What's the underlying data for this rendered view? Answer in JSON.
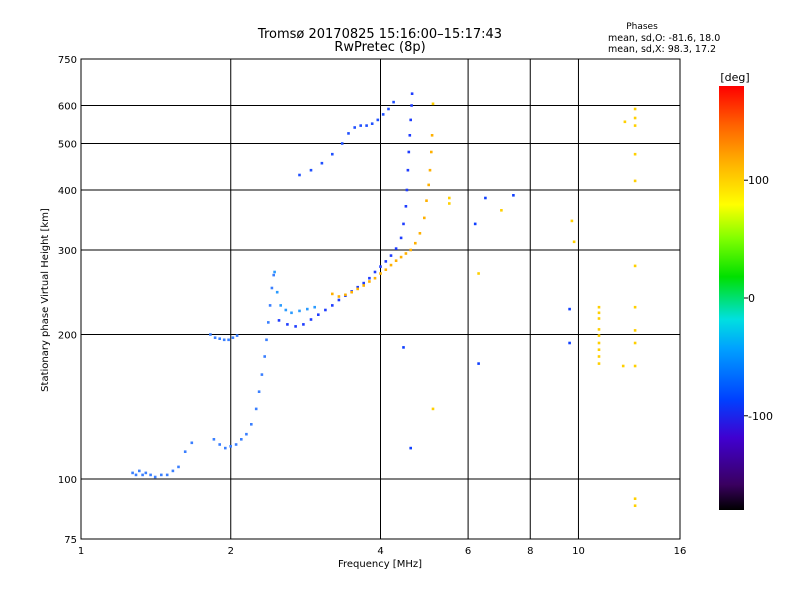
{
  "chart_data": {
    "type": "scatter",
    "title": "Tromsø 20170825 15:16:00–15:17:43",
    "subtitle": "RwPretec (8p)",
    "xlabel": "Frequency [MHz]",
    "ylabel": "Stationary phase Virtual Height [km]",
    "x_scale": "log",
    "y_scale": "log",
    "xlim": [
      1,
      16
    ],
    "ylim": [
      75,
      750
    ],
    "x_ticks": [
      1,
      2,
      4,
      6,
      8,
      10,
      16
    ],
    "y_ticks": [
      75,
      100,
      200,
      300,
      400,
      500,
      600,
      750
    ],
    "grid": true,
    "phase_stats": {
      "header": "Phases",
      "o_line": "mean, sd,O: -81.6, 18.0",
      "x_line": "mean, sd,X:  98.3, 17.2"
    },
    "colorbar": {
      "title": "[deg]",
      "ticks": [
        100,
        0,
        -100
      ],
      "range": [
        -180,
        180
      ]
    },
    "series": [
      {
        "trace": "o-low",
        "color": "#3a7fff",
        "points": [
          [
            1.27,
            103
          ],
          [
            1.29,
            102
          ],
          [
            1.31,
            104
          ],
          [
            1.33,
            102
          ],
          [
            1.35,
            103
          ],
          [
            1.38,
            102
          ],
          [
            1.41,
            101
          ],
          [
            1.45,
            102
          ],
          [
            1.49,
            102
          ],
          [
            1.53,
            104
          ],
          [
            1.57,
            106
          ],
          [
            1.62,
            114
          ],
          [
            1.67,
            119
          ],
          [
            1.82,
            200
          ],
          [
            1.86,
            197
          ],
          [
            1.9,
            196
          ],
          [
            1.94,
            195
          ],
          [
            1.98,
            195
          ],
          [
            2.02,
            197
          ],
          [
            2.06,
            199
          ],
          [
            1.85,
            121
          ],
          [
            1.9,
            118
          ],
          [
            1.95,
            116
          ],
          [
            2.0,
            117
          ],
          [
            2.05,
            118
          ],
          [
            2.1,
            121
          ],
          [
            2.15,
            124
          ],
          [
            2.2,
            130
          ],
          [
            2.25,
            140
          ],
          [
            2.28,
            152
          ],
          [
            2.31,
            165
          ],
          [
            2.34,
            180
          ],
          [
            2.36,
            195
          ],
          [
            2.38,
            212
          ],
          [
            2.4,
            230
          ],
          [
            2.42,
            250
          ],
          [
            2.44,
            266
          ]
        ]
      },
      {
        "trace": "o-main",
        "color": "#1f3dff",
        "points": [
          [
            2.5,
            214
          ],
          [
            2.6,
            210
          ],
          [
            2.7,
            208
          ],
          [
            2.8,
            210
          ],
          [
            2.9,
            215
          ],
          [
            3.0,
            220
          ],
          [
            3.1,
            225
          ],
          [
            3.2,
            230
          ],
          [
            3.3,
            236
          ],
          [
            3.4,
            241
          ],
          [
            3.5,
            246
          ],
          [
            3.6,
            251
          ],
          [
            3.7,
            256
          ],
          [
            3.8,
            262
          ],
          [
            3.9,
            270
          ],
          [
            4.0,
            277
          ],
          [
            4.1,
            284
          ],
          [
            4.2,
            292
          ],
          [
            4.3,
            302
          ],
          [
            4.4,
            318
          ],
          [
            4.45,
            340
          ],
          [
            4.5,
            370
          ],
          [
            4.52,
            400
          ],
          [
            4.54,
            440
          ],
          [
            4.56,
            480
          ],
          [
            4.58,
            520
          ],
          [
            4.6,
            560
          ],
          [
            4.62,
            600
          ],
          [
            4.63,
            635
          ]
        ]
      },
      {
        "trace": "o-upper",
        "color": "#2050ff",
        "points": [
          [
            2.75,
            430
          ],
          [
            2.9,
            440
          ],
          [
            3.05,
            455
          ],
          [
            3.2,
            475
          ],
          [
            3.35,
            500
          ],
          [
            3.45,
            525
          ],
          [
            3.55,
            540
          ],
          [
            3.65,
            545
          ],
          [
            3.75,
            545
          ],
          [
            3.85,
            550
          ],
          [
            3.95,
            560
          ],
          [
            4.05,
            575
          ],
          [
            4.15,
            590
          ],
          [
            4.25,
            610
          ]
        ]
      },
      {
        "trace": "o-cusp",
        "color": "#2a9bff",
        "points": [
          [
            2.45,
            270
          ],
          [
            2.48,
            245
          ],
          [
            2.52,
            230
          ],
          [
            2.58,
            225
          ],
          [
            2.65,
            222
          ],
          [
            2.75,
            224
          ],
          [
            2.85,
            226
          ],
          [
            2.95,
            228
          ]
        ]
      },
      {
        "trace": "x-trace",
        "color": "#ffb000",
        "points": [
          [
            3.2,
            243
          ],
          [
            3.3,
            240
          ],
          [
            3.4,
            242
          ],
          [
            3.5,
            245
          ],
          [
            3.6,
            249
          ],
          [
            3.7,
            253
          ],
          [
            3.8,
            258
          ],
          [
            3.9,
            262
          ],
          [
            4.0,
            268
          ],
          [
            4.1,
            273
          ],
          [
            4.2,
            279
          ],
          [
            4.3,
            285
          ],
          [
            4.4,
            290
          ],
          [
            4.5,
            295
          ],
          [
            4.6,
            300
          ],
          [
            4.7,
            310
          ],
          [
            4.8,
            325
          ],
          [
            4.9,
            350
          ],
          [
            4.95,
            380
          ],
          [
            5.0,
            410
          ],
          [
            5.03,
            440
          ],
          [
            5.06,
            480
          ],
          [
            5.08,
            520
          ]
        ]
      },
      {
        "trace": "scattered",
        "color": "#ffd000",
        "points": [
          [
            5.5,
            385
          ],
          [
            5.5,
            375
          ],
          [
            9.7,
            345
          ],
          [
            9.8,
            312
          ],
          [
            11.0,
            228
          ],
          [
            11.0,
            222
          ],
          [
            11.0,
            216
          ],
          [
            11.0,
            205
          ],
          [
            11.0,
            199
          ],
          [
            11.0,
            192
          ],
          [
            11.0,
            186
          ],
          [
            11.0,
            180
          ],
          [
            11.0,
            174
          ],
          [
            12.4,
            555
          ],
          [
            13.0,
            590
          ],
          [
            13.0,
            565
          ],
          [
            13.0,
            545
          ],
          [
            13.0,
            475
          ],
          [
            13.0,
            418
          ],
          [
            13.0,
            278
          ],
          [
            13.0,
            228
          ],
          [
            13.0,
            204
          ],
          [
            13.0,
            192
          ],
          [
            13.0,
            91
          ],
          [
            13.0,
            88
          ],
          [
            12.3,
            172
          ],
          [
            13.0,
            172
          ],
          [
            5.1,
            140
          ],
          [
            5.1,
            605
          ],
          [
            7.0,
            363
          ],
          [
            6.3,
            268
          ]
        ]
      },
      {
        "trace": "scattered-o",
        "color": "#1040ff",
        "points": [
          [
            6.2,
            340
          ],
          [
            6.5,
            385
          ],
          [
            7.4,
            390
          ],
          [
            9.6,
            192
          ],
          [
            9.6,
            226
          ],
          [
            6.3,
            174
          ],
          [
            4.45,
            188
          ],
          [
            4.6,
            116
          ]
        ]
      }
    ]
  }
}
